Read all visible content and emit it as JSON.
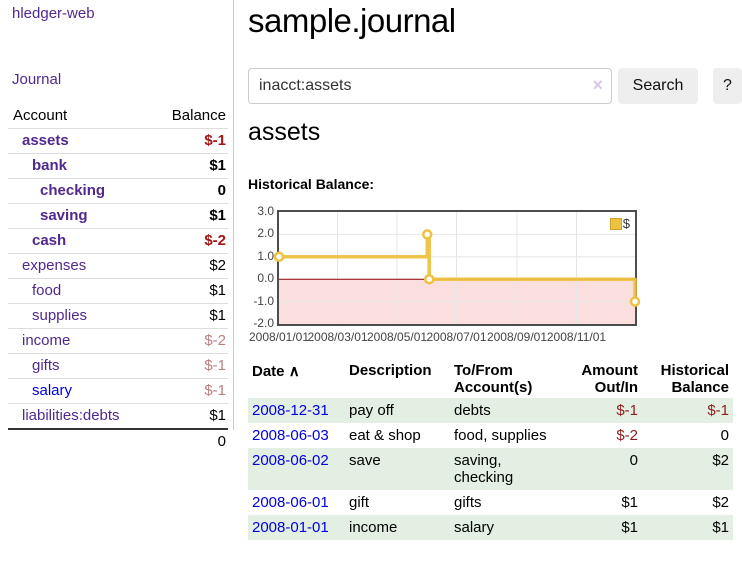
{
  "app": {
    "brand": "hledger-web",
    "nav_journal": "Journal"
  },
  "colors": {
    "link_purple": "#51298e",
    "link_blue": "#0000dd",
    "negative_strong": "#a31616",
    "negative_muted": "#b98080",
    "table_negative": "#8b1c1c",
    "row_green": "#e2efe2",
    "chart_line": "#edc240",
    "chart_negative_fill": "#fbdede",
    "chart_zero_line": "#8b0000"
  },
  "sidebar": {
    "header": {
      "account": "Account",
      "balance": "Balance"
    },
    "accounts": [
      {
        "name": "assets",
        "balance": "$-1"
      },
      {
        "name": "bank",
        "balance": "$1"
      },
      {
        "name": "checking",
        "balance": "0"
      },
      {
        "name": "saving",
        "balance": "$1"
      },
      {
        "name": "cash",
        "balance": "$-2"
      },
      {
        "name": "expenses",
        "balance": "$2"
      },
      {
        "name": "food",
        "balance": "$1"
      },
      {
        "name": "supplies",
        "balance": "$1"
      },
      {
        "name": "income",
        "balance": "$-2"
      },
      {
        "name": "gifts",
        "balance": "$-1"
      },
      {
        "name": "salary",
        "balance": "$-1"
      },
      {
        "name": "liabilities:debts",
        "balance": "$1"
      }
    ],
    "total": "0"
  },
  "main": {
    "title": "sample.journal",
    "search": {
      "query": "inacct:assets",
      "clear_icon": "×",
      "button": "Search",
      "help_button": "?"
    },
    "account_heading": "assets",
    "chart_label": "Historical Balance:"
  },
  "chart_data": {
    "type": "line",
    "title": "Historical Balance:",
    "series": [
      {
        "name": "$",
        "color": "#edc240",
        "step": true,
        "points": [
          [
            "2008-01-01",
            1
          ],
          [
            "2008-06-01",
            2
          ],
          [
            "2008-06-03",
            0
          ],
          [
            "2008-12-31",
            -1
          ]
        ]
      }
    ],
    "x_ticks": [
      "2008/01/01",
      "2008/03/01",
      "2008/05/01",
      "2008/07/01",
      "2008/09/01",
      "2008/11/01"
    ],
    "y_ticks": [
      3.0,
      2.0,
      1.0,
      0.0,
      -1.0,
      -2.0
    ],
    "xlim": [
      "2008-01-01",
      "2008-12-31"
    ],
    "ylim": [
      -2,
      3
    ],
    "grid": true,
    "legend_position": "top-right",
    "legend_label": "$"
  },
  "register": {
    "headers": {
      "date": "Date",
      "sort_icon": "∧",
      "description": "Description",
      "tofrom": "To/From Account(s)",
      "amount": "Amount Out/In",
      "balance": "Historical Balance"
    },
    "rows": [
      {
        "date": "2008-12-31",
        "description": "pay off",
        "accounts": "debts",
        "amount": "$-1",
        "balance": "$-1"
      },
      {
        "date": "2008-06-03",
        "description": "eat & shop",
        "accounts": "food, supplies",
        "amount": "$-2",
        "balance": "0"
      },
      {
        "date": "2008-06-02",
        "description": "save",
        "accounts": "saving, checking",
        "amount": "0",
        "balance": "$2"
      },
      {
        "date": "2008-06-01",
        "description": "gift",
        "accounts": "gifts",
        "amount": "$1",
        "balance": "$2"
      },
      {
        "date": "2008-01-01",
        "description": "income",
        "accounts": "salary",
        "amount": "$1",
        "balance": "$1"
      }
    ]
  }
}
